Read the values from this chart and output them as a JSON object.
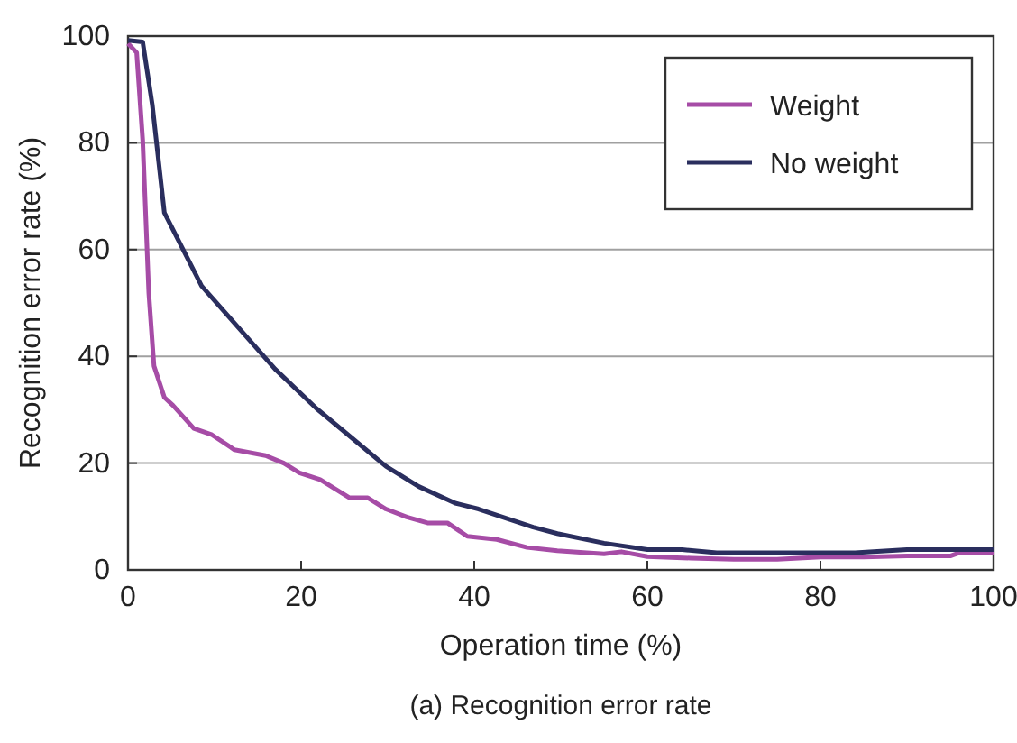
{
  "chart_data": {
    "type": "line",
    "xlabel": "Operation time (%)",
    "ylabel": "Recognition error rate (%)",
    "annotations": [
      "(a) Recognition error rate"
    ],
    "xlim": [
      0,
      100
    ],
    "ylim": [
      0,
      100
    ],
    "xticks": [
      0,
      20,
      40,
      60,
      80,
      100
    ],
    "yticks": [
      0,
      20,
      40,
      60,
      80,
      100
    ],
    "grid": "y",
    "legend": "top right",
    "line_style": "solid",
    "series": [
      {
        "name": "Weight",
        "color": "#a64ca6",
        "x": [
          0,
          1,
          1.7,
          2.4,
          3,
          4.2,
          5.2,
          7.6,
          9.7,
          12.3,
          15.9,
          18,
          19.8,
          22.2,
          25.6,
          27.7,
          29.8,
          32.2,
          34.6,
          36.9,
          39.2,
          42.6,
          46.1,
          49.6,
          53,
          55,
          57,
          60,
          65,
          70,
          75,
          80,
          85,
          90,
          95,
          96,
          100
        ],
        "values": [
          98.6,
          96.9,
          80.4,
          51.9,
          38.2,
          32.3,
          30.8,
          26.5,
          25.3,
          22.5,
          21.4,
          20,
          18.2,
          16.9,
          13.5,
          13.5,
          11.4,
          9.9,
          8.8,
          8.8,
          6.3,
          5.7,
          4.2,
          3.6,
          3.2,
          3,
          3.4,
          2.5,
          2.2,
          2,
          2,
          2.4,
          2.4,
          2.6,
          2.6,
          3.2,
          3.2
        ]
      },
      {
        "name": "No weight",
        "color": "#2a2e5e",
        "x": [
          0,
          1.7,
          2.8,
          4.2,
          8.5,
          17,
          21.8,
          29.8,
          33.6,
          37.8,
          40.5,
          46.8,
          49.6,
          55,
          60,
          64,
          68,
          75,
          84,
          90,
          95,
          100
        ],
        "values": [
          99.2,
          98.9,
          87.2,
          66.9,
          53.2,
          37.6,
          30.2,
          19.4,
          15.6,
          12.5,
          11.4,
          8,
          6.8,
          5,
          3.8,
          3.8,
          3.2,
          3.2,
          3.2,
          3.8,
          3.8,
          3.8
        ]
      }
    ]
  }
}
